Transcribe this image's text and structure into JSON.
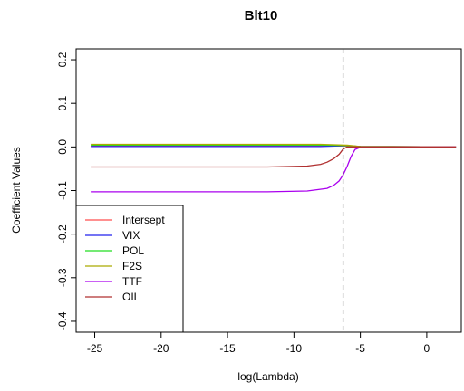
{
  "chart_data": {
    "type": "line",
    "title": "Blt10",
    "xlabel": "log(Lambda)",
    "ylabel": "Coefficient Values",
    "xlim": [
      -26.4,
      2.6
    ],
    "ylim": [
      -0.425,
      0.225
    ],
    "xticks": [
      -25,
      -20,
      -15,
      -10,
      -5,
      0
    ],
    "yticks": [
      -0.4,
      -0.3,
      -0.2,
      -0.1,
      0.0,
      0.1,
      0.2
    ],
    "x_tick_labels": [
      "-25",
      "-20",
      "-15",
      "-10",
      "-5",
      "0"
    ],
    "y_tick_labels": [
      "-0.4",
      "-0.3",
      "-0.2",
      "-0.1",
      "0.0",
      "0.1",
      "0.2"
    ],
    "vline": {
      "x": -6.3,
      "style": "dashed",
      "color": "#555555"
    },
    "grid": false,
    "legend": {
      "position": "bottom-left"
    },
    "series": [
      {
        "name": "Intersept",
        "color": "#ff4d4d",
        "points": [
          [
            -25.3,
            0.002
          ],
          [
            -7.0,
            0.002
          ],
          [
            -6.0,
            0.002
          ],
          [
            -5.0,
            0.001
          ],
          [
            2.2,
            0.0
          ]
        ]
      },
      {
        "name": "VIX",
        "color": "#2222ee",
        "points": [
          [
            -25.3,
            0.001
          ],
          [
            -8.0,
            0.001
          ],
          [
            -6.0,
            0.003
          ],
          [
            -5.0,
            0.001
          ],
          [
            2.2,
            0.0
          ]
        ]
      },
      {
        "name": "POL",
        "color": "#22dd22",
        "points": [
          [
            -25.3,
            0.004
          ],
          [
            -8.0,
            0.004
          ],
          [
            -6.0,
            0.003
          ],
          [
            -5.0,
            0.001
          ],
          [
            2.2,
            0.0
          ]
        ]
      },
      {
        "name": "F2S",
        "color": "#aaaa00",
        "points": [
          [
            -25.3,
            0.006
          ],
          [
            -8.0,
            0.006
          ],
          [
            -6.0,
            0.004
          ],
          [
            -5.0,
            0.001
          ],
          [
            2.2,
            0.0
          ]
        ]
      },
      {
        "name": "TTF",
        "color": "#aa00ee",
        "points": [
          [
            -25.3,
            -0.103
          ],
          [
            -12.0,
            -0.103
          ],
          [
            -9.0,
            -0.101
          ],
          [
            -7.5,
            -0.095
          ],
          [
            -7.0,
            -0.088
          ],
          [
            -6.6,
            -0.078
          ],
          [
            -6.3,
            -0.064
          ],
          [
            -6.0,
            -0.045
          ],
          [
            -5.7,
            -0.022
          ],
          [
            -5.4,
            -0.006
          ],
          [
            -5.0,
            -0.001
          ],
          [
            2.2,
            0.0
          ]
        ]
      },
      {
        "name": "OIL",
        "color": "#b03030",
        "points": [
          [
            -25.3,
            -0.046
          ],
          [
            -12.0,
            -0.046
          ],
          [
            -9.0,
            -0.044
          ],
          [
            -8.0,
            -0.04
          ],
          [
            -7.5,
            -0.035
          ],
          [
            -7.0,
            -0.027
          ],
          [
            -6.6,
            -0.017
          ],
          [
            -6.3,
            -0.005
          ],
          [
            -6.0,
            0.0
          ],
          [
            2.2,
            0.0
          ]
        ]
      }
    ]
  }
}
